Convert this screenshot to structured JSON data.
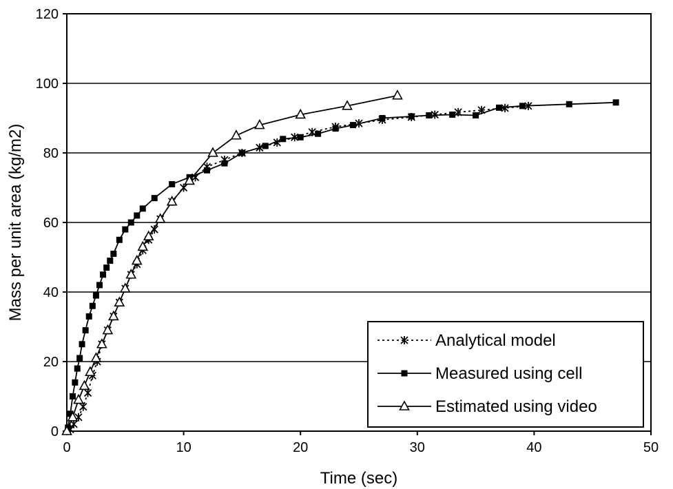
{
  "chart_data": {
    "type": "line",
    "xlabel": "Time (sec)",
    "ylabel": "Mass per unit area (kg/m2)",
    "xlim": [
      0,
      50
    ],
    "ylim": [
      0,
      120
    ],
    "xticks": [
      0,
      10,
      20,
      30,
      40,
      50
    ],
    "yticks": [
      0,
      20,
      40,
      60,
      80,
      100,
      120
    ],
    "grid": "horizontal",
    "legend_position": "bottom-right",
    "series": [
      {
        "name": "Analytical model",
        "line_style": "dotted",
        "marker": "asterisk",
        "color": "#000000",
        "x": [
          0.3,
          0.6,
          1.0,
          1.4,
          1.8,
          2.2,
          2.6,
          3.0,
          3.5,
          4.0,
          4.5,
          5.0,
          5.5,
          6.0,
          6.5,
          7.0,
          7.5,
          8.0,
          9.0,
          10.0,
          11.0,
          12.0,
          13.5,
          15.0,
          16.5,
          18.0,
          19.5,
          21.0,
          23.0,
          25.0,
          27.0,
          29.5,
          31.5,
          33.5,
          35.5,
          37.5,
          39.5
        ],
        "y": [
          0.5,
          2,
          4,
          7,
          11,
          16,
          20,
          25,
          29,
          33,
          37,
          41,
          45,
          48,
          52,
          55,
          58,
          61,
          66,
          70,
          73,
          76,
          78,
          80,
          81.5,
          83,
          84.5,
          86,
          87.5,
          88.5,
          89.5,
          90.3,
          91,
          91.7,
          92.3,
          92.9,
          93.5
        ]
      },
      {
        "name": "Measured using cell",
        "line_style": "solid",
        "marker": "square",
        "color": "#000000",
        "x": [
          0.1,
          0.3,
          0.5,
          0.7,
          0.9,
          1.1,
          1.3,
          1.6,
          1.9,
          2.2,
          2.5,
          2.8,
          3.1,
          3.4,
          3.7,
          4.0,
          4.5,
          5.0,
          5.5,
          6.0,
          6.5,
          7.5,
          9.0,
          10.5,
          12.0,
          13.5,
          15.0,
          17.0,
          18.5,
          20.0,
          21.5,
          23.0,
          24.5,
          27.0,
          29.5,
          31.0,
          33.0,
          35.0,
          37.0,
          39.0,
          43.0,
          47.0
        ],
        "y": [
          1,
          5,
          10,
          14,
          18,
          21,
          25,
          29,
          33,
          36,
          39,
          42,
          45,
          47,
          49,
          51,
          55,
          58,
          60,
          62,
          64,
          67,
          71,
          73,
          75,
          77,
          80,
          82,
          84,
          84.5,
          85.5,
          87,
          88,
          90,
          90.5,
          90.8,
          91,
          90.8,
          93,
          93.5,
          94,
          94.5
        ]
      },
      {
        "name": "Estimated using video",
        "line_style": "solid",
        "marker": "triangle",
        "color": "#000000",
        "x": [
          0,
          0.5,
          1.0,
          1.5,
          2.0,
          2.5,
          3.0,
          3.5,
          4.0,
          4.5,
          5.0,
          5.5,
          6.0,
          6.5,
          7.0,
          8.0,
          9.0,
          10.5,
          12.5,
          14.5,
          16.5,
          20.0,
          24.0,
          28.3
        ],
        "y": [
          0,
          4,
          9,
          13,
          17,
          21,
          25,
          29,
          33,
          37,
          41,
          45,
          49,
          53,
          56,
          61,
          66,
          72,
          80,
          85,
          88,
          91,
          93.5,
          96.5
        ]
      }
    ]
  }
}
